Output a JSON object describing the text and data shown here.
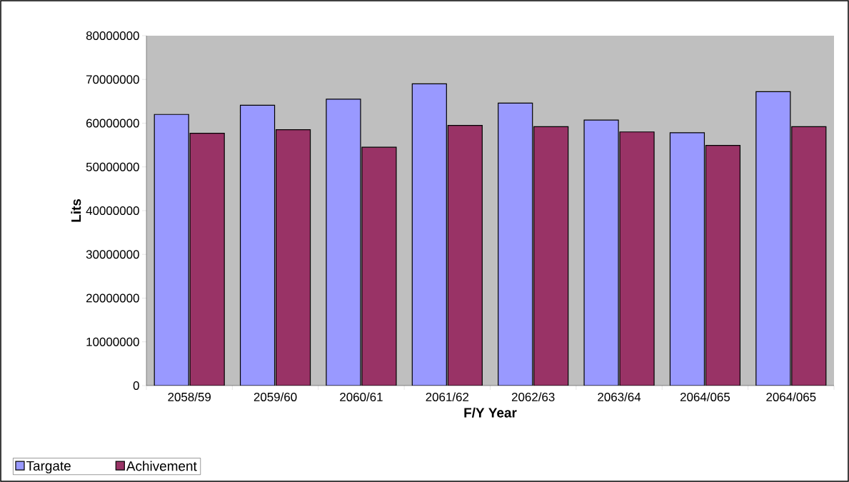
{
  "chart_data": {
    "type": "bar",
    "xlabel": "F/Y Year",
    "ylabel": "Lits",
    "categories": [
      "2058/59",
      "2059/60",
      "2060/61",
      "2061/62",
      "2062/63",
      "2063/64",
      "2064/065",
      "2064/065"
    ],
    "series": [
      {
        "name": "Targate",
        "color": "#9999ff",
        "values": [
          62000000,
          64100000,
          65500000,
          69000000,
          64600000,
          60700000,
          57800000,
          67200000
        ]
      },
      {
        "name": "Achivement",
        "color": "#993366",
        "values": [
          57700000,
          58500000,
          54500000,
          59500000,
          59200000,
          58000000,
          54900000,
          59200000
        ]
      }
    ],
    "ylim": [
      0,
      80000000
    ],
    "yticks": [
      0,
      10000000,
      20000000,
      30000000,
      40000000,
      50000000,
      60000000,
      70000000,
      80000000
    ],
    "grid": false,
    "legend": "bottom left"
  }
}
